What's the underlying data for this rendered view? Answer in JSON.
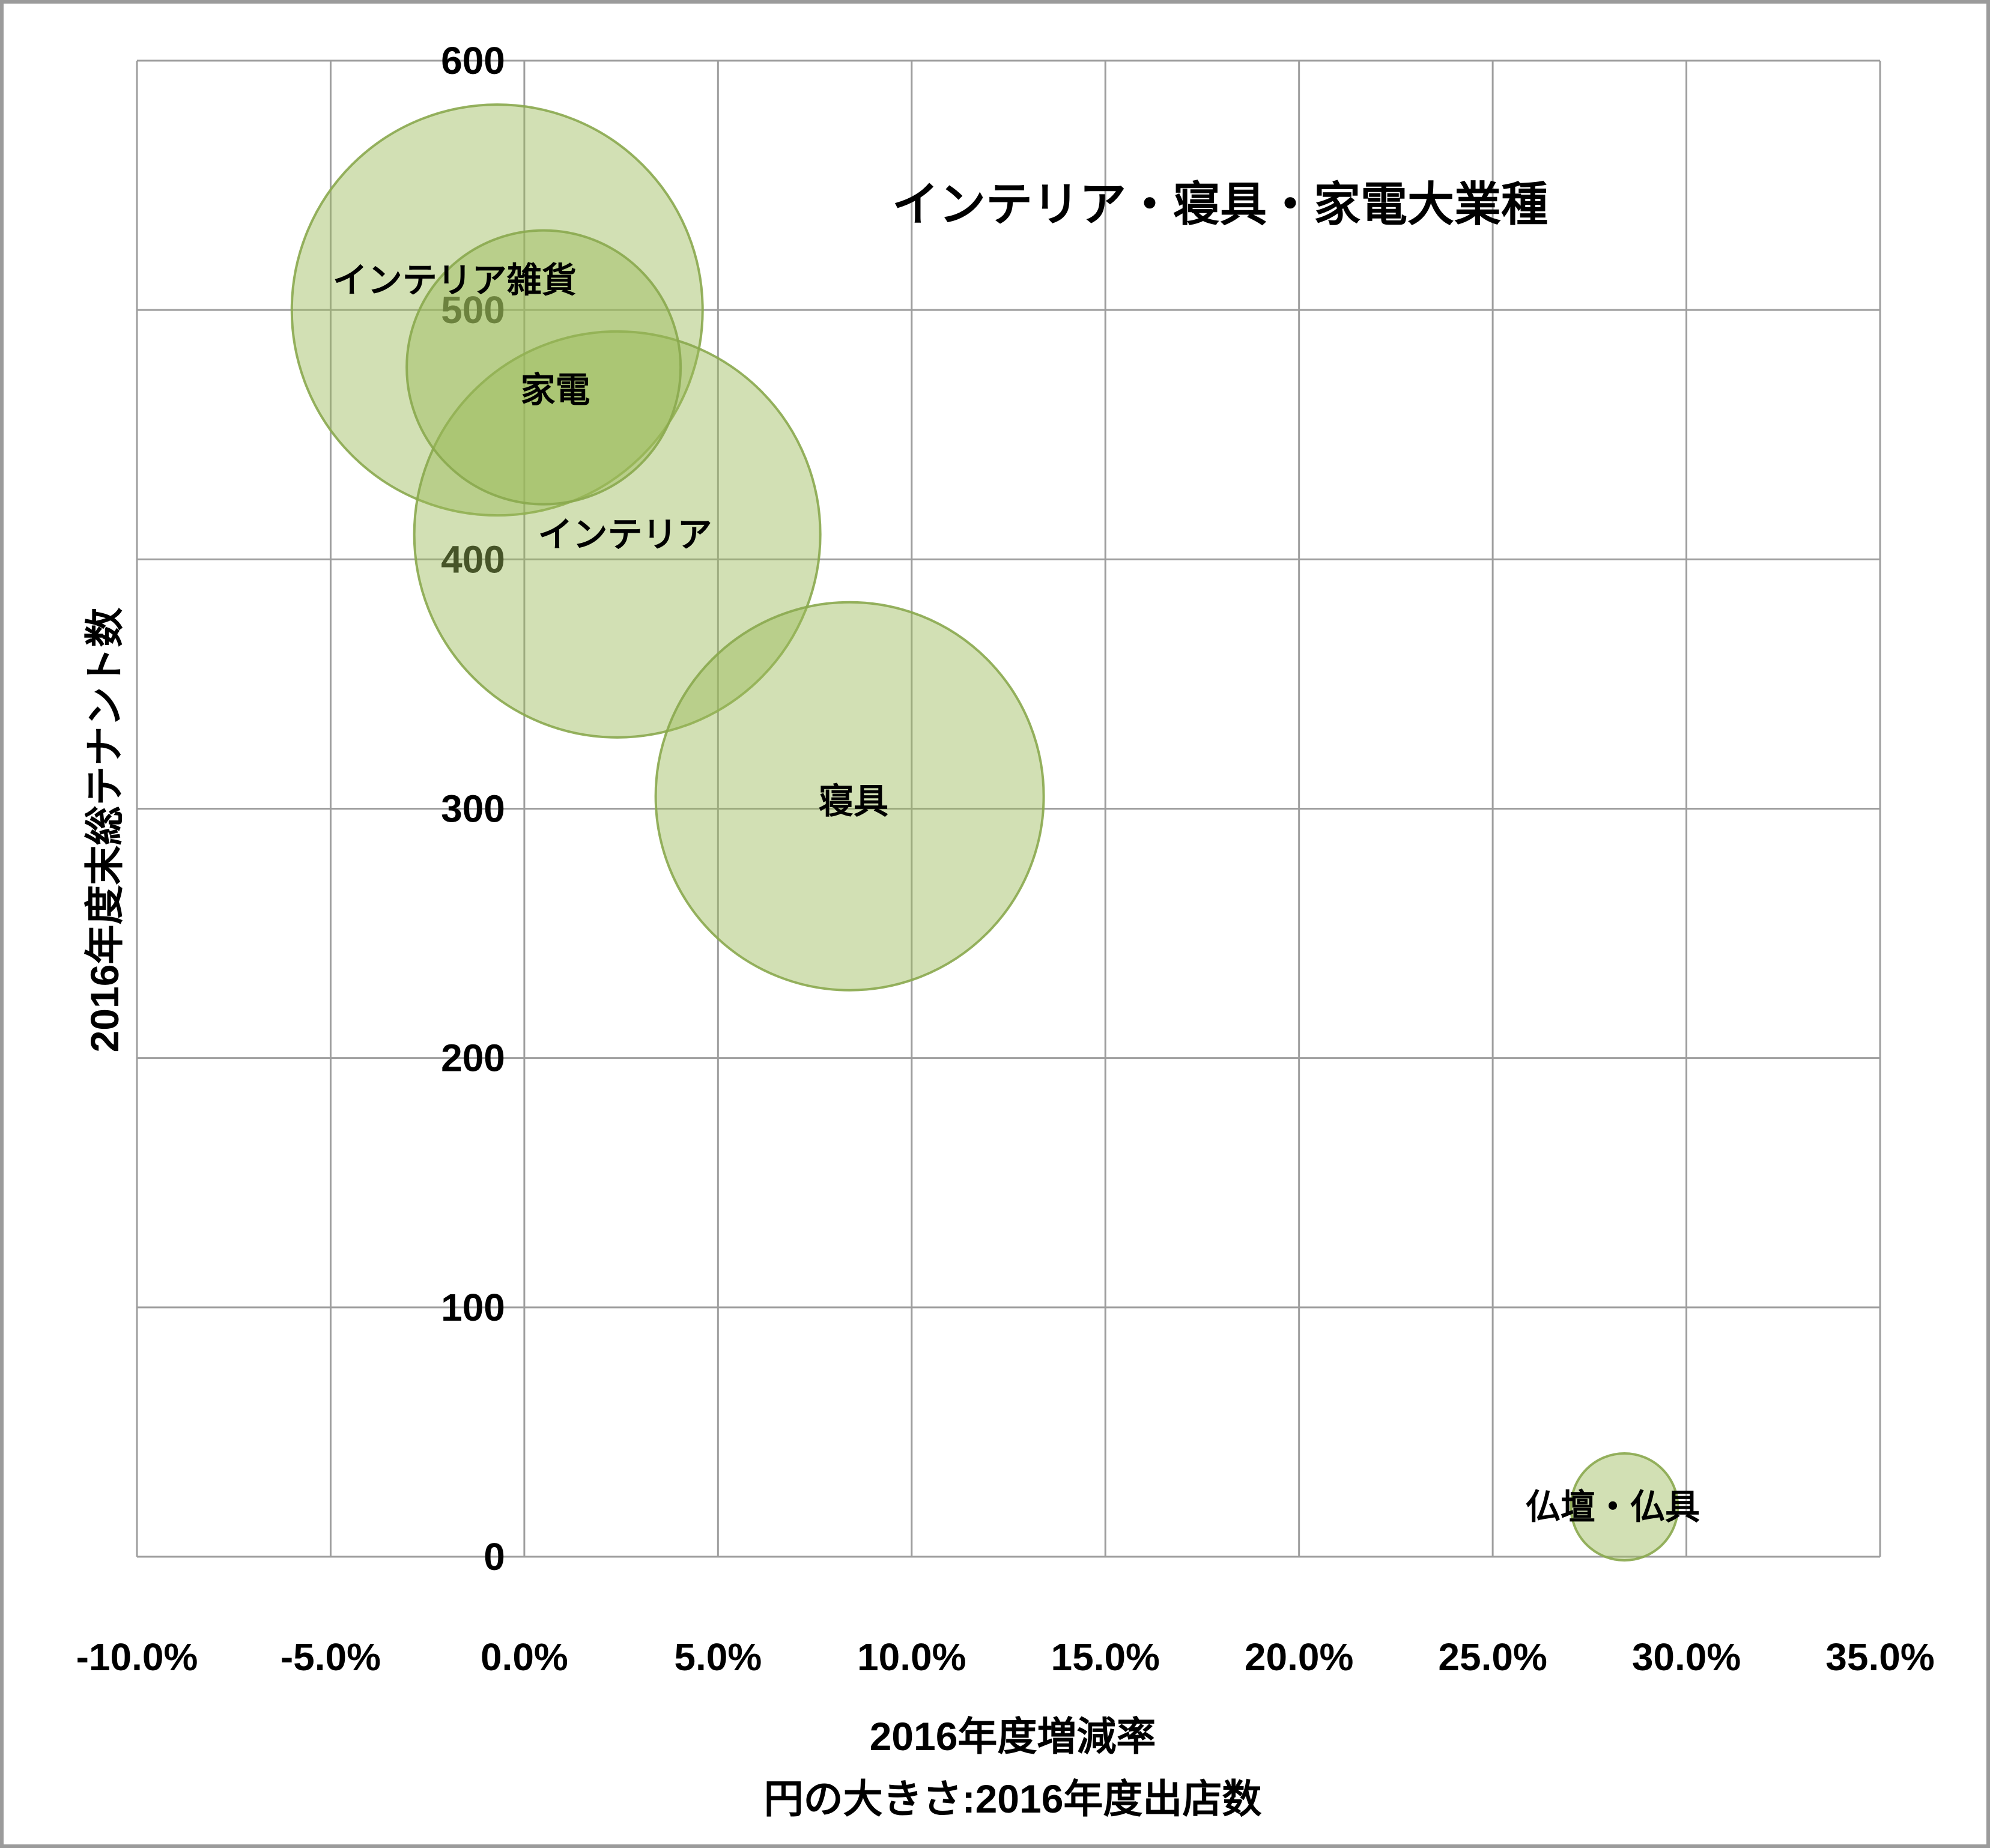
{
  "chart_data": {
    "type": "scatter",
    "subtype": "bubble",
    "title": "インテリア・寝具・家電大業種",
    "xlabel": "2016年度増減率",
    "xlabel2": "円の大きさ:2016年度出店数",
    "ylabel": "2016年度末総テナント数",
    "xlim": [
      -10,
      35
    ],
    "ylim": [
      0,
      600
    ],
    "x_tick_labels": [
      "-10.0%",
      "-5.0%",
      "0.0%",
      "5.0%",
      "10.0%",
      "15.0%",
      "20.0%",
      "25.0%",
      "30.0%",
      "35.0%"
    ],
    "x_tick_values": [
      -10,
      -5,
      0,
      5,
      10,
      15,
      20,
      25,
      30,
      35
    ],
    "y_tick_labels": [
      "0",
      "100",
      "200",
      "300",
      "400",
      "500",
      "600"
    ],
    "y_tick_values": [
      0,
      100,
      200,
      300,
      400,
      500,
      600
    ],
    "grid": true,
    "legend": "none",
    "bubble_size_meaning": "2016年度出店数",
    "colors": {
      "bubble_fill": "#9BBB59",
      "bubble_fill_opacity": 0.45,
      "bubble_stroke": "#8AA94E",
      "grid": "#9e9e9e",
      "text": "#000000"
    },
    "points": [
      {
        "label": "インテリア雑貨",
        "x": -0.7,
        "y": 500,
        "r": 342,
        "label_x": -1.8,
        "label_y": 512
      },
      {
        "label": "インテリア",
        "x": 2.4,
        "y": 410,
        "r": 338,
        "label_x": 2.6,
        "label_y": 410
      },
      {
        "label": "家電",
        "x": 0.5,
        "y": 477,
        "r": 228,
        "label_x": 0.8,
        "label_y": 468
      },
      {
        "label": "寝具",
        "x": 8.4,
        "y": 305,
        "r": 323,
        "label_x": 8.5,
        "label_y": 303
      },
      {
        "label": "仏壇・仏具",
        "x": 28.4,
        "y": 20,
        "r": 89,
        "label_x": 28.1,
        "label_y": 20
      }
    ]
  }
}
